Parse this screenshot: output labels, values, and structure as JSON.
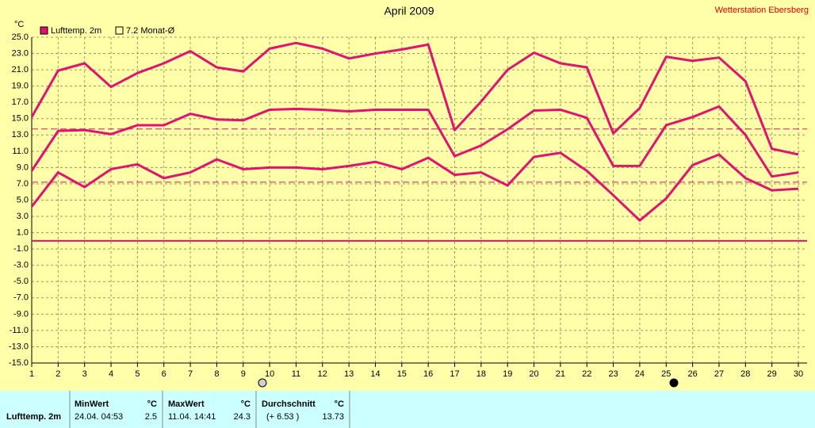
{
  "chart_data": {
    "type": "line",
    "title": "April 2009",
    "station": "Wetterstation Ebersberg",
    "y_unit": "°C",
    "x": [
      1,
      2,
      3,
      4,
      5,
      6,
      7,
      8,
      9,
      10,
      11,
      12,
      13,
      14,
      15,
      16,
      17,
      18,
      19,
      20,
      21,
      22,
      23,
      24,
      25,
      26,
      27,
      28,
      29,
      30
    ],
    "xlim": [
      1,
      30
    ],
    "xticks": [
      1,
      2,
      3,
      4,
      5,
      6,
      7,
      8,
      9,
      10,
      11,
      12,
      13,
      14,
      15,
      16,
      17,
      18,
      19,
      20,
      21,
      22,
      23,
      24,
      25,
      26,
      27,
      28,
      29,
      30
    ],
    "ylim": [
      -15,
      25
    ],
    "yticks": [
      {
        "value": 25,
        "label": "25.0"
      },
      {
        "value": 23,
        "label": "23.0"
      },
      {
        "value": 21,
        "label": "21.0"
      },
      {
        "value": 19,
        "label": "19.0"
      },
      {
        "value": 17,
        "label": "17.0"
      },
      {
        "value": 15,
        "label": "15.0"
      },
      {
        "value": 13,
        "label": "13.0"
      },
      {
        "value": 11,
        "label": "11.0"
      },
      {
        "value": 9,
        "label": "9.0"
      },
      {
        "value": 7,
        "label": "7.0"
      },
      {
        "value": 5,
        "label": "5.0"
      },
      {
        "value": 3,
        "label": "3.0"
      },
      {
        "value": 1,
        "label": "1.0"
      },
      {
        "value": -1,
        "label": "-1.0"
      },
      {
        "value": -3,
        "label": "-3.0"
      },
      {
        "value": -5,
        "label": "-5.0"
      },
      {
        "value": -7,
        "label": "-7.0"
      },
      {
        "value": -9,
        "label": "-9.0"
      },
      {
        "value": -11,
        "label": "-11.0"
      },
      {
        "value": -13,
        "label": "-13.0"
      },
      {
        "value": -15,
        "label": "-15.0"
      }
    ],
    "grid": true,
    "series": [
      {
        "name": "Lufttemp. 2m",
        "color": "#e3116f",
        "values": [
          8.6,
          13.5,
          13.6,
          13.1,
          14.2,
          14.2,
          15.6,
          14.9,
          14.8,
          16.1,
          16.2,
          16.1,
          15.9,
          16.1,
          16.1,
          16.1,
          10.4,
          11.7,
          13.7,
          16.0,
          16.1,
          15.1,
          9.2,
          9.2,
          14.2,
          15.2,
          16.5,
          13.0,
          7.9,
          8.4
        ],
        "max": [
          15.2,
          20.9,
          21.8,
          18.9,
          20.6,
          21.8,
          23.3,
          21.3,
          20.8,
          23.6,
          24.3,
          23.6,
          22.4,
          23.0,
          23.5,
          24.1,
          13.6,
          17.1,
          21.0,
          23.1,
          21.8,
          21.3,
          13.2,
          16.3,
          22.6,
          22.1,
          22.5,
          19.6,
          11.3,
          10.6
        ],
        "min": [
          4.2,
          8.4,
          6.6,
          8.8,
          9.4,
          7.7,
          8.4,
          10.0,
          8.8,
          9.0,
          9.0,
          8.8,
          9.2,
          9.7,
          8.8,
          10.2,
          8.1,
          8.4,
          6.8,
          10.3,
          10.8,
          8.6,
          5.6,
          2.5,
          5.2,
          9.3,
          10.6,
          7.7,
          6.2,
          6.4
        ]
      }
    ],
    "reference_legend": "7.2 Monat-Ø",
    "reference_lines": [
      {
        "value": 13.73,
        "style": "dashed"
      },
      {
        "value": 7.2,
        "style": "dashed"
      },
      {
        "value": 0,
        "style": "solid"
      }
    ]
  },
  "stats_table": {
    "row_label": "Lufttemp. 2m",
    "columns": [
      {
        "header": "MinWert",
        "unit": "°C",
        "when": "24.04.  04:53",
        "value": "2.5"
      },
      {
        "header": "MaxWert",
        "unit": "°C",
        "when": "11.04.  14:41",
        "value": "24.3"
      },
      {
        "header": "Durchschnitt",
        "unit": "°C",
        "when": "(+ 6.53 )",
        "value": "13.73"
      }
    ]
  }
}
